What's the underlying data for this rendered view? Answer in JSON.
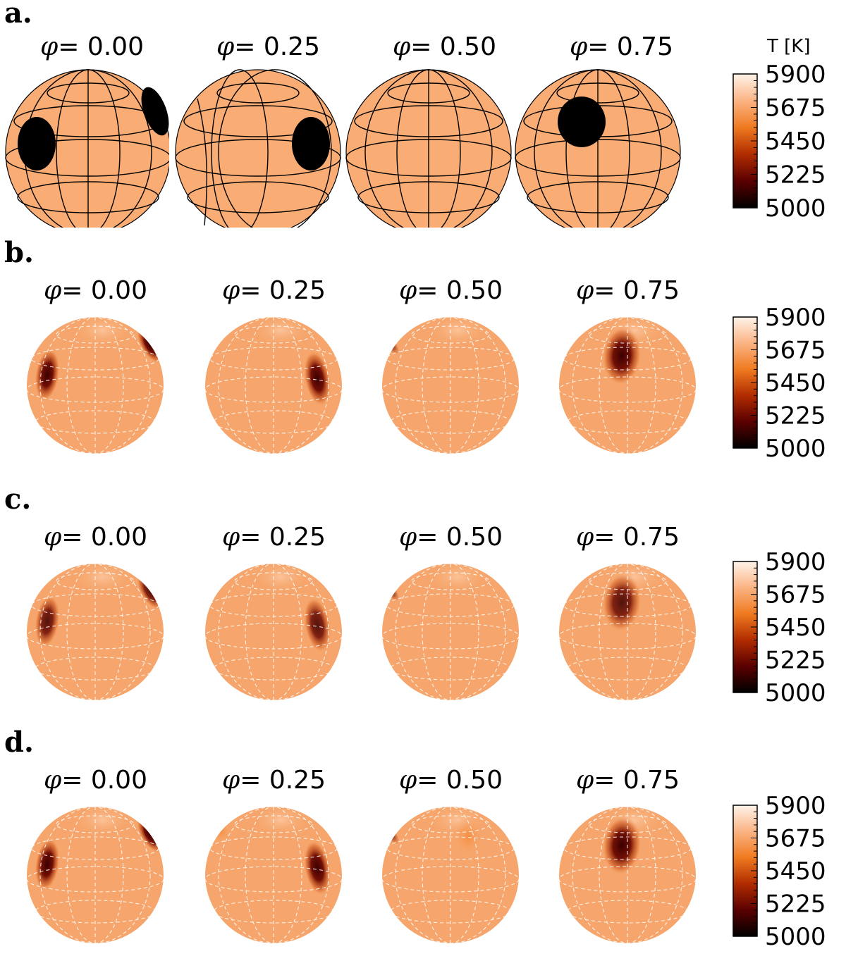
{
  "figure": {
    "colorbar_title": "T [K]",
    "colorbar_ticks": [
      "5900",
      "5675",
      "5450",
      "5225",
      "5000"
    ],
    "colormap": [
      "#000000",
      "#5a0000",
      "#b02c00",
      "#ef7a1f",
      "#fbb383",
      "#fff3ea"
    ],
    "surface_color": "#f9ad74",
    "reconstructed_color": "#f6a66c",
    "phi_symbol": "φ",
    "phase_format": "= ",
    "panels": [
      {
        "id": "a",
        "label": "a.",
        "phases": [
          "0.00",
          "0.25",
          "0.50",
          "0.75"
        ]
      },
      {
        "id": "b",
        "label": "b.",
        "phases": [
          "0.00",
          "0.25",
          "0.50",
          "0.75"
        ]
      },
      {
        "id": "c",
        "label": "c.",
        "phases": [
          "0.00",
          "0.25",
          "0.50",
          "0.75"
        ]
      },
      {
        "id": "d",
        "label": "d.",
        "phases": [
          "0.00",
          "0.25",
          "0.50",
          "0.75"
        ]
      }
    ]
  }
}
